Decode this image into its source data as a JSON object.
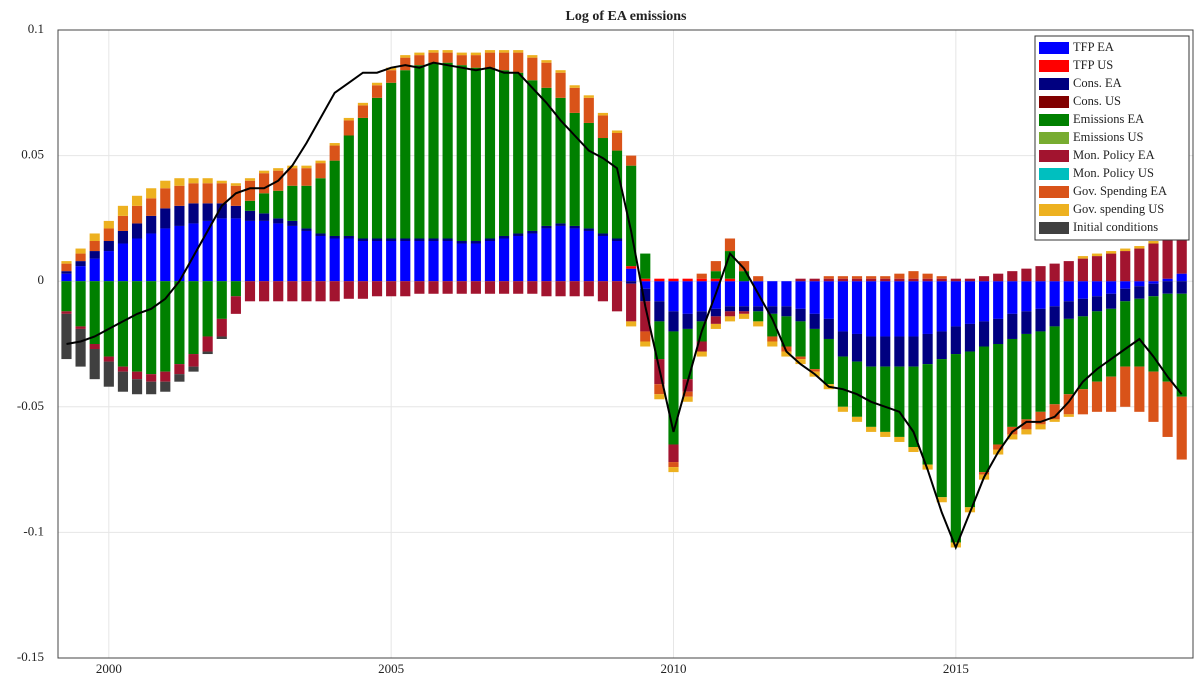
{
  "chart_data": {
    "type": "stacked_bar",
    "title": "Log of EA emissions",
    "x": [
      1999.25,
      1999.5,
      1999.75,
      2000,
      2000.25,
      2000.5,
      2000.75,
      2001,
      2001.25,
      2001.5,
      2001.75,
      2002,
      2002.25,
      2002.5,
      2002.75,
      2003,
      2003.25,
      2003.5,
      2003.75,
      2004,
      2004.25,
      2004.5,
      2004.75,
      2005,
      2005.25,
      2005.5,
      2005.75,
      2006,
      2006.25,
      2006.5,
      2006.75,
      2007,
      2007.25,
      2007.5,
      2007.75,
      2008,
      2008.25,
      2008.5,
      2008.75,
      2009,
      2009.25,
      2009.5,
      2009.75,
      2010,
      2010.25,
      2010.5,
      2010.75,
      2011,
      2011.25,
      2011.5,
      2011.75,
      2012,
      2012.25,
      2012.5,
      2012.75,
      2013,
      2013.25,
      2013.5,
      2013.75,
      2014,
      2014.25,
      2014.5,
      2014.75,
      2015,
      2015.25,
      2015.5,
      2015.75,
      2016,
      2016.25,
      2016.5,
      2016.75,
      2017,
      2017.25,
      2017.5,
      2017.75,
      2018,
      2018.25,
      2018.5,
      2018.75,
      2019
    ],
    "xlim": [
      1999.1,
      2019.2
    ],
    "xticks": [
      2000,
      2005,
      2010,
      2015
    ],
    "ylim": [
      -0.15,
      0.1
    ],
    "yticks": [
      0.1,
      0.05,
      0,
      -0.05,
      -0.1,
      -0.15
    ],
    "grid": true,
    "legend": "northeast",
    "series": [
      {
        "name": "TFP EA",
        "color": "#0000ff",
        "values": [
          0.003,
          0.006,
          0.009,
          0.012,
          0.015,
          0.017,
          0.019,
          0.021,
          0.022,
          0.023,
          0.024,
          0.025,
          0.025,
          0.024,
          0.024,
          0.023,
          0.022,
          0.02,
          0.018,
          0.017,
          0.017,
          0.016,
          0.016,
          0.016,
          0.016,
          0.016,
          0.016,
          0.016,
          0.015,
          0.015,
          0.016,
          0.017,
          0.018,
          0.019,
          0.021,
          0.022,
          0.021,
          0.02,
          0.018,
          0.016,
          0.005,
          -0.003,
          -0.008,
          -0.012,
          -0.013,
          -0.012,
          -0.011,
          -0.01,
          -0.01,
          -0.01,
          -0.01,
          -0.01,
          -0.011,
          -0.013,
          -0.015,
          -0.02,
          -0.021,
          -0.022,
          -0.022,
          -0.022,
          -0.022,
          -0.021,
          -0.02,
          -0.018,
          -0.017,
          -0.016,
          -0.015,
          -0.013,
          -0.012,
          -0.011,
          -0.01,
          -0.008,
          -0.007,
          -0.006,
          -0.005,
          -0.003,
          -0.002,
          -0.001,
          0.001,
          0.003
        ]
      },
      {
        "name": "TFP US",
        "color": "#ff0000",
        "values": [
          0,
          0,
          0,
          0,
          0,
          0,
          0,
          0,
          0,
          0,
          0,
          0,
          0,
          0,
          0,
          0,
          0,
          0,
          0,
          0,
          0,
          0,
          0,
          0,
          0,
          0,
          0,
          0,
          0,
          0,
          0,
          0,
          0,
          0,
          0,
          0,
          0,
          0,
          0,
          0,
          0.001,
          0.001,
          0.001,
          0.001,
          0.001,
          0.001,
          0.001,
          0.001,
          0,
          0,
          0,
          0,
          0,
          0,
          0,
          0,
          0,
          0,
          0,
          0,
          0,
          0,
          0,
          0,
          0,
          0,
          0,
          0,
          0,
          0,
          0,
          0,
          0,
          0,
          0,
          0,
          0,
          0,
          0,
          0
        ]
      },
      {
        "name": "Cons. EA",
        "color": "#000080",
        "values": [
          0.001,
          0.002,
          0.003,
          0.004,
          0.005,
          0.006,
          0.007,
          0.008,
          0.008,
          0.008,
          0.007,
          0.006,
          0.005,
          0.004,
          0.003,
          0.002,
          0.002,
          0.001,
          0.001,
          0.001,
          0.001,
          0.001,
          0.001,
          0.001,
          0.001,
          0.001,
          0.001,
          0.001,
          0.001,
          0.001,
          0.001,
          0.001,
          0.001,
          0.001,
          0.001,
          0.001,
          0.001,
          0.001,
          0.001,
          0.001,
          -0.001,
          -0.005,
          -0.008,
          -0.008,
          -0.006,
          -0.004,
          -0.003,
          -0.002,
          -0.002,
          -0.002,
          -0.003,
          -0.004,
          -0.005,
          -0.006,
          -0.008,
          -0.01,
          -0.011,
          -0.012,
          -0.012,
          -0.012,
          -0.012,
          -0.012,
          -0.011,
          -0.011,
          -0.011,
          -0.01,
          -0.01,
          -0.01,
          -0.009,
          -0.009,
          -0.008,
          -0.007,
          -0.007,
          -0.006,
          -0.006,
          -0.005,
          -0.005,
          -0.005,
          -0.005,
          -0.005
        ]
      },
      {
        "name": "Cons. US",
        "color": "#800000",
        "values": [
          0,
          0,
          0,
          0,
          0,
          0,
          0,
          0,
          0,
          0,
          0,
          0,
          0,
          0,
          0,
          0,
          0,
          0,
          0,
          0,
          0,
          0,
          0,
          0,
          0,
          0,
          0,
          0,
          0,
          0,
          0,
          0,
          0,
          0,
          0,
          0,
          0,
          0,
          0,
          0,
          0,
          0,
          0,
          0,
          0,
          0,
          0,
          0,
          0,
          0,
          0,
          0,
          0,
          0,
          0,
          0,
          0,
          0,
          0,
          0,
          0,
          0,
          0,
          0,
          0,
          0,
          0,
          0,
          0,
          0,
          0,
          0,
          0,
          0,
          0,
          0,
          0,
          0,
          0,
          0
        ]
      },
      {
        "name": "Emissions EA",
        "color": "#008000",
        "values": [
          -0.012,
          -0.018,
          -0.025,
          -0.03,
          -0.034,
          -0.036,
          -0.037,
          -0.036,
          -0.033,
          -0.029,
          -0.022,
          -0.015,
          -0.006,
          0.004,
          0.008,
          0.011,
          0.014,
          0.017,
          0.022,
          0.03,
          0.04,
          0.048,
          0.056,
          0.062,
          0.067,
          0.069,
          0.07,
          0.07,
          0.07,
          0.069,
          0.068,
          0.066,
          0.064,
          0.06,
          0.055,
          0.05,
          0.045,
          0.042,
          0.038,
          0.035,
          0.04,
          0.01,
          -0.015,
          -0.045,
          -0.02,
          -0.008,
          0.003,
          0.011,
          0.004,
          -0.004,
          -0.009,
          -0.012,
          -0.014,
          -0.016,
          -0.018,
          -0.02,
          -0.022,
          -0.024,
          -0.026,
          -0.028,
          -0.032,
          -0.04,
          -0.055,
          -0.075,
          -0.062,
          -0.05,
          -0.04,
          -0.035,
          -0.034,
          -0.032,
          -0.031,
          -0.03,
          -0.029,
          -0.028,
          -0.027,
          -0.026,
          -0.027,
          -0.03,
          -0.035,
          -0.041
        ]
      },
      {
        "name": "Emissions US",
        "color": "#77ac30",
        "values": [
          0,
          0,
          0,
          0,
          0,
          0,
          0,
          0,
          0,
          0,
          0,
          0,
          0,
          0,
          0,
          0,
          0,
          0,
          0,
          0,
          0,
          0,
          0,
          0,
          0,
          0,
          0,
          0,
          0,
          0,
          0,
          0,
          0,
          0,
          0,
          0,
          0,
          0,
          0,
          0,
          0,
          0,
          0,
          0,
          0,
          0,
          0,
          0,
          0,
          0,
          0,
          0,
          0,
          0,
          0,
          0,
          0,
          0,
          0,
          0,
          0,
          0,
          0,
          0,
          0,
          0,
          0,
          0,
          0,
          0,
          0,
          0,
          0,
          0,
          0,
          0,
          0,
          0,
          0,
          0
        ]
      },
      {
        "name": "Mon. Policy EA",
        "color": "#a2142f",
        "values": [
          -0.001,
          -0.001,
          -0.002,
          -0.002,
          -0.002,
          -0.003,
          -0.003,
          -0.004,
          -0.004,
          -0.005,
          -0.006,
          -0.007,
          -0.007,
          -0.008,
          -0.008,
          -0.008,
          -0.008,
          -0.008,
          -0.008,
          -0.008,
          -0.007,
          -0.007,
          -0.006,
          -0.006,
          -0.006,
          -0.005,
          -0.005,
          -0.005,
          -0.005,
          -0.005,
          -0.005,
          -0.005,
          -0.005,
          -0.005,
          -0.006,
          -0.006,
          -0.006,
          -0.006,
          -0.008,
          -0.012,
          -0.015,
          -0.012,
          -0.01,
          -0.007,
          -0.005,
          -0.004,
          -0.003,
          -0.002,
          -0.001,
          0,
          0,
          0,
          0.001,
          0.001,
          0.001,
          0.001,
          0.001,
          0.001,
          0.001,
          0.001,
          0.001,
          0.001,
          0.001,
          0.001,
          0.001,
          0.002,
          0.003,
          0.004,
          0.005,
          0.006,
          0.007,
          0.008,
          0.009,
          0.01,
          0.011,
          0.012,
          0.013,
          0.015,
          0.016,
          0.017
        ]
      },
      {
        "name": "Mon. Policy US",
        "color": "#00bfbf",
        "values": [
          0,
          0,
          0,
          0,
          0,
          0,
          0,
          0,
          0,
          0,
          0,
          0,
          0,
          0,
          0,
          0,
          0,
          0,
          0,
          0,
          0,
          0,
          0,
          0,
          0,
          0,
          0,
          0,
          0,
          0,
          0,
          0,
          0,
          0,
          0,
          0,
          0,
          0,
          0,
          0,
          0,
          0,
          0,
          0,
          0,
          0,
          0,
          0,
          0,
          0,
          0,
          0,
          0,
          0,
          0,
          0,
          0,
          0,
          0,
          0,
          0,
          0,
          0,
          0,
          0,
          0,
          0,
          0,
          0,
          0,
          0,
          0,
          0,
          0,
          0,
          0,
          0,
          0,
          0,
          0
        ]
      },
      {
        "name": "Gov. Spending EA",
        "color": "#d95319",
        "values": [
          0.003,
          0.003,
          0.004,
          0.005,
          0.006,
          0.007,
          0.007,
          0.008,
          0.008,
          0.008,
          0.008,
          0.008,
          0.008,
          0.008,
          0.008,
          0.008,
          0.007,
          0.007,
          0.006,
          0.006,
          0.006,
          0.005,
          0.005,
          0.005,
          0.005,
          0.004,
          0.004,
          0.004,
          0.004,
          0.005,
          0.006,
          0.007,
          0.008,
          0.009,
          0.01,
          0.01,
          0.01,
          0.01,
          0.009,
          0.007,
          0.004,
          -0.004,
          -0.004,
          -0.002,
          -0.002,
          0.002,
          0.004,
          0.005,
          0.004,
          0.002,
          -0.002,
          -0.002,
          -0.001,
          -0.001,
          0.001,
          0.001,
          0.001,
          0.001,
          0.001,
          0.002,
          0.003,
          0.002,
          0.001,
          0,
          0,
          -0.001,
          -0.002,
          -0.003,
          -0.004,
          -0.005,
          -0.006,
          -0.008,
          -0.01,
          -0.012,
          -0.014,
          -0.016,
          -0.018,
          -0.02,
          -0.022,
          -0.025
        ]
      },
      {
        "name": "Gov. spending US",
        "color": "#edb120",
        "values": [
          0.001,
          0.002,
          0.003,
          0.003,
          0.004,
          0.004,
          0.004,
          0.003,
          0.003,
          0.002,
          0.002,
          0.001,
          0.001,
          0.001,
          0.001,
          0.001,
          0.001,
          0.001,
          0.001,
          0.001,
          0.001,
          0.001,
          0.001,
          0.001,
          0.001,
          0.001,
          0.001,
          0.001,
          0.001,
          0.001,
          0.001,
          0.001,
          0.001,
          0.001,
          0.001,
          0.001,
          0.001,
          0.001,
          0.001,
          0.001,
          -0.002,
          -0.002,
          -0.002,
          -0.002,
          -0.002,
          -0.002,
          -0.002,
          -0.002,
          -0.002,
          -0.002,
          -0.002,
          -0.002,
          -0.002,
          -0.002,
          -0.002,
          -0.002,
          -0.002,
          -0.002,
          -0.002,
          -0.002,
          -0.002,
          -0.002,
          -0.002,
          -0.002,
          -0.002,
          -0.002,
          -0.002,
          -0.002,
          -0.002,
          -0.002,
          -0.001,
          -0.001,
          0.001,
          0.001,
          0.001,
          0.001,
          0.001,
          0.001,
          0.001,
          0.001
        ]
      },
      {
        "name": "Initial conditions",
        "color": "#404040",
        "values": [
          -0.018,
          -0.015,
          -0.012,
          -0.01,
          -0.008,
          -0.006,
          -0.005,
          -0.004,
          -0.003,
          -0.002,
          -0.001,
          -0.001,
          0,
          0,
          0,
          0,
          0,
          0,
          0,
          0,
          0,
          0,
          0,
          0,
          0,
          0,
          0,
          0,
          0,
          0,
          0,
          0,
          0,
          0,
          0,
          0,
          0,
          0,
          0,
          0,
          0,
          0,
          0,
          0,
          0,
          0,
          0,
          0,
          0,
          0,
          0,
          0,
          0,
          0,
          0,
          0,
          0,
          0,
          0,
          0,
          0,
          0,
          0,
          0,
          0,
          0,
          0,
          0,
          0,
          0,
          0,
          0,
          0,
          0,
          0,
          0,
          0,
          0,
          0,
          0
        ]
      }
    ],
    "line": {
      "color": "#000000",
      "values": [
        -0.025,
        -0.024,
        -0.022,
        -0.019,
        -0.016,
        -0.013,
        -0.011,
        -0.007,
        0,
        0.01,
        0.02,
        0.03,
        0.035,
        0.037,
        0.037,
        0.04,
        0.046,
        0.055,
        0.065,
        0.075,
        0.079,
        0.083,
        0.083,
        0.085,
        0.086,
        0.085,
        0.087,
        0.086,
        0.085,
        0.084,
        0.085,
        0.083,
        0.083,
        0.077,
        0.071,
        0.064,
        0.058,
        0.052,
        0.049,
        0.045,
        0.02,
        -0.01,
        -0.035,
        -0.06,
        -0.04,
        -0.02,
        -0.005,
        0.011,
        0.005,
        -0.005,
        -0.015,
        -0.028,
        -0.033,
        -0.037,
        -0.042,
        -0.043,
        -0.045,
        -0.048,
        -0.05,
        -0.052,
        -0.06,
        -0.075,
        -0.092,
        -0.106,
        -0.092,
        -0.078,
        -0.068,
        -0.06,
        -0.056,
        -0.056,
        -0.054,
        -0.048,
        -0.04,
        -0.035,
        -0.031,
        -0.027,
        -0.023,
        -0.03,
        -0.038,
        -0.045
      ]
    }
  }
}
